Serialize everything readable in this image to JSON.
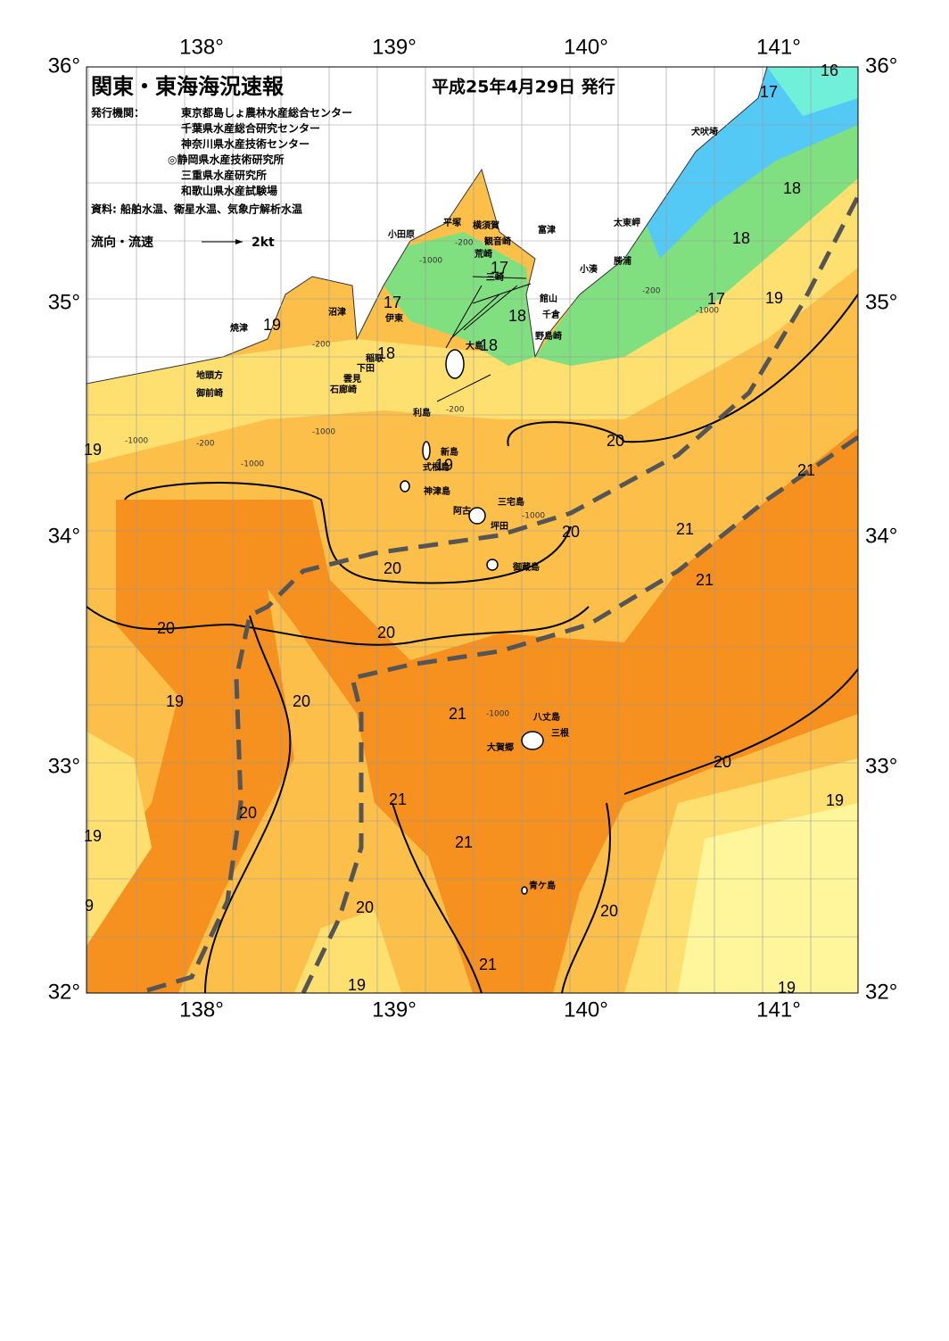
{
  "header": {
    "title": "関東・東海海況速報",
    "date": "平成25年4月29日 発行"
  },
  "publishers": {
    "label": "発行機関：",
    "items": [
      "東京都島しょ農林水産総合センター",
      "千葉県水産総合研究センター",
      "神奈川県水産技術センター",
      "◎静岡県水産技術研究所",
      "三重県水産研究所",
      "和歌山県水産試験場"
    ]
  },
  "sources": "資料: 船舶水温、衛星水温、気象庁解析水温",
  "legend": {
    "label": "流向・流速",
    "scale": "2kt"
  },
  "axes": {
    "lon": [
      "138°",
      "139°",
      "140°",
      "141°"
    ],
    "lat": [
      "36°",
      "35°",
      "34°",
      "33°",
      "32°"
    ]
  },
  "places": [
    "犬吠埼",
    "太東岬",
    "勝浦",
    "小湊",
    "館山",
    "千倉",
    "野島崎",
    "富津",
    "横須賀",
    "観音崎",
    "平塚",
    "荒崎",
    "三崎",
    "小田原",
    "沼津",
    "伊東",
    "焼津",
    "稲取",
    "下田",
    "雲見",
    "石廊崎",
    "地頭方",
    "御前崎",
    "大島",
    "利島",
    "新島",
    "式根島",
    "神津島",
    "三宅島",
    "阿古",
    "坪田",
    "御蔵島",
    "八丈島",
    "三根",
    "大賀郷",
    "青ケ島"
  ],
  "isotherms": [
    "16",
    "17",
    "18",
    "18",
    "17",
    "19",
    "17",
    "18",
    "18",
    "17",
    "18",
    "19",
    "19",
    "19",
    "20",
    "21",
    "21",
    "20",
    "21",
    "20",
    "20",
    "20",
    "19",
    "20",
    "21",
    "20",
    "19",
    "21",
    "20",
    "21",
    "19",
    "9",
    "20",
    "20",
    "21",
    "19",
    "19"
  ],
  "depths": [
    "-200",
    "-1000",
    "-200",
    "-200",
    "-1000",
    "-1000",
    "-200",
    "-1000",
    "-1000",
    "-200",
    "-1000",
    "-1000"
  ]
}
